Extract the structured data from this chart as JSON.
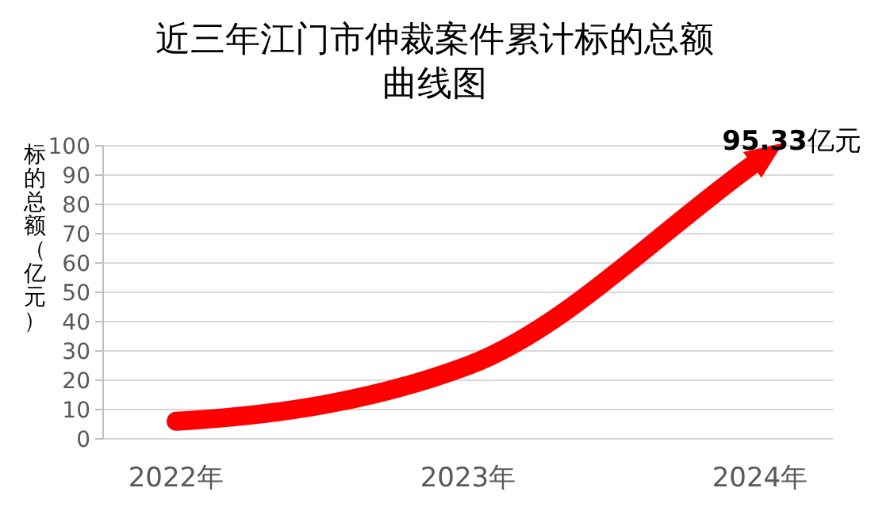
{
  "chart_data": {
    "type": "line",
    "title": "近三年江门市仲裁案件累计标的总额曲线图",
    "ylabel": "标的总额（亿元）",
    "categories": [
      "2022年",
      "2023年",
      "2024年"
    ],
    "series": [
      {
        "color": "#ff0000",
        "values": [
          6,
          25,
          95.33
        ],
        "value_labels": [
          null,
          null,
          "95.33亿元"
        ]
      }
    ],
    "ylim": [
      0,
      100
    ],
    "yticks": [
      0,
      10,
      20,
      30,
      40,
      50,
      60,
      70,
      80,
      90,
      100
    ],
    "grid": "y",
    "line_style": "solid"
  }
}
